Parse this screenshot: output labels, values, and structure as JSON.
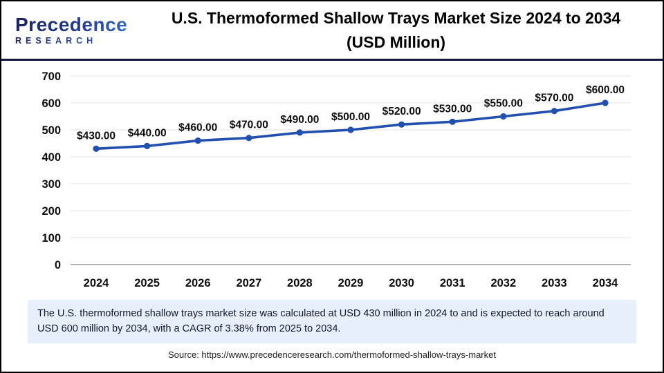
{
  "header": {
    "logo_brand": "Precedence",
    "logo_sub": "RESEARCH",
    "title_line1": "U.S. Thermoformed Shallow Trays Market Size 2024 to 2034",
    "title_line2": "(USD Million)"
  },
  "chart_data": {
    "type": "line",
    "title": "U.S. Thermoformed Shallow Trays Market Size 2024 to 2034 (USD Million)",
    "categories": [
      "2024",
      "2025",
      "2026",
      "2027",
      "2028",
      "2029",
      "2030",
      "2031",
      "2032",
      "2033",
      "2034"
    ],
    "values": [
      430,
      440,
      460,
      470,
      490,
      500,
      520,
      530,
      550,
      570,
      600
    ],
    "value_labels": [
      "$430.00",
      "$440.00",
      "$460.00",
      "$470.00",
      "$490.00",
      "$500.00",
      "$520.00",
      "$530.00",
      "$550.00",
      "$570.00",
      "$600.00"
    ],
    "xlabel": "",
    "ylabel": "",
    "ylim": [
      0,
      700
    ],
    "ytick_step": 100,
    "grid": true,
    "legend": "none",
    "line_color": "#2150b0",
    "marker_color": "#2150b0",
    "grid_color": "#e9e9e9",
    "zero_line_color": "#b3b3b3",
    "label_color": "#0d0d0d",
    "tick_color": "#0d0d0d"
  },
  "note": {
    "text": "The U.S. thermoformed shallow trays market size was calculated at USD 430 million in 2024 to and is expected to reach around USD 600 million by 2034, with a CAGR of 3.38% from 2025 to 2034."
  },
  "source": {
    "text": "Source: https://www.precedenceresearch.com/thermoformed-shallow-trays-market"
  },
  "colors": {
    "header_rule": "#0e1540",
    "note_bg": "#e7effa",
    "frame_border": "#000000"
  }
}
